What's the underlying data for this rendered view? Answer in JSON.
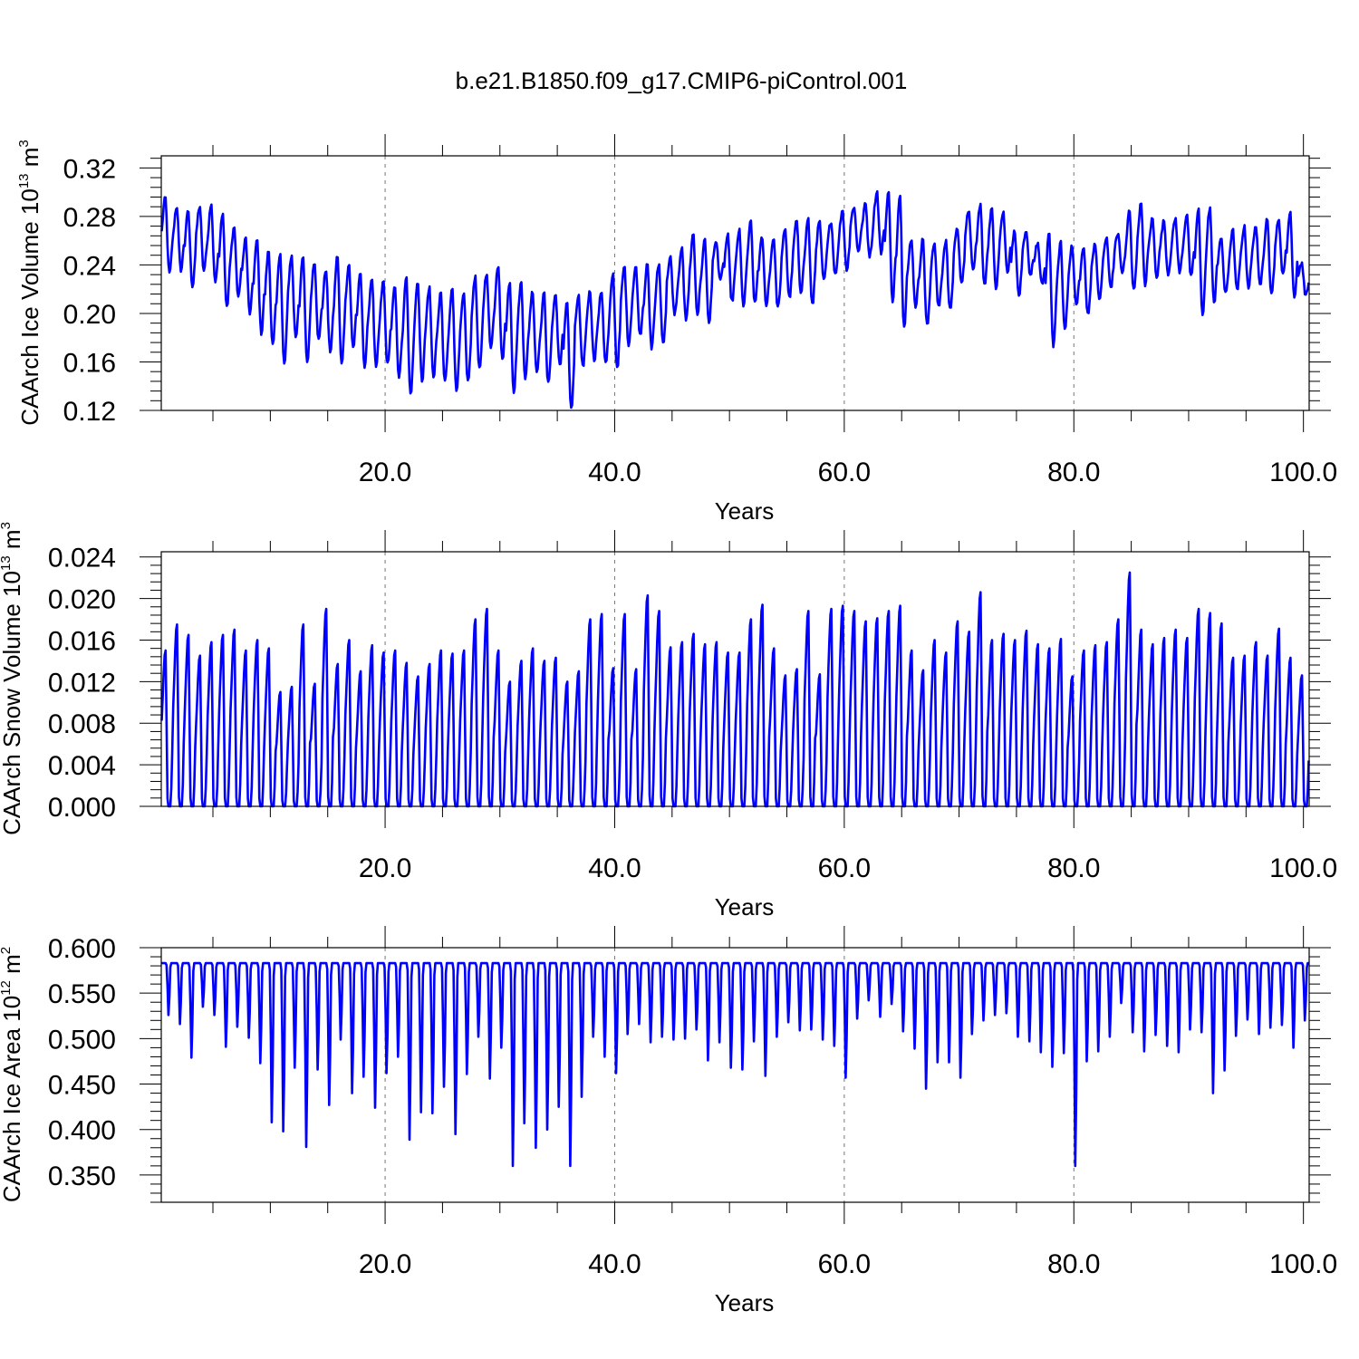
{
  "page": {
    "title": "b.e21.B1850.f09_g17.CMIP6-piControl.001"
  },
  "series_color": "#0000ff",
  "chart_data": [
    {
      "type": "line",
      "xlabel": "Years",
      "ylabel": "CAArch Ice Volume 10",
      "ylabel_exp": "13",
      "ylabel_unit": " m",
      "ylabel_unit_exp": "3",
      "xlim": [
        0.5,
        100.5
      ],
      "ylim": [
        0.12,
        0.33
      ],
      "x_ticks": [
        20,
        40,
        60,
        80,
        100
      ],
      "x_tick_labels": [
        "20.0",
        "40.0",
        "60.0",
        "80.0",
        "100.0"
      ],
      "y_ticks": [
        0.12,
        0.16,
        0.2,
        0.24,
        0.28,
        0.32
      ],
      "y_tick_labels": [
        "0.12",
        "0.16",
        "0.20",
        "0.24",
        "0.28",
        "0.32"
      ],
      "grid": "vertical dashed at major x ticks",
      "seasonal": {
        "years": 100,
        "annual_max": [
          0.295,
          0.288,
          0.284,
          0.288,
          0.289,
          0.283,
          0.271,
          0.262,
          0.26,
          0.251,
          0.25,
          0.247,
          0.246,
          0.242,
          0.236,
          0.247,
          0.24,
          0.232,
          0.229,
          0.226,
          0.221,
          0.229,
          0.226,
          0.221,
          0.216,
          0.22,
          0.218,
          0.23,
          0.232,
          0.24,
          0.226,
          0.225,
          0.218,
          0.216,
          0.215,
          0.21,
          0.214,
          0.218,
          0.218,
          0.232,
          0.238,
          0.238,
          0.24,
          0.24,
          0.246,
          0.253,
          0.264,
          0.261,
          0.258,
          0.264,
          0.268,
          0.275,
          0.262,
          0.262,
          0.27,
          0.276,
          0.278,
          0.275,
          0.276,
          0.285,
          0.288,
          0.29,
          0.3,
          0.3,
          0.296,
          0.262,
          0.262,
          0.258,
          0.26,
          0.27,
          0.285,
          0.29,
          0.286,
          0.283,
          0.268,
          0.266,
          0.258,
          0.266,
          0.258,
          0.255,
          0.254,
          0.258,
          0.262,
          0.266,
          0.285,
          0.29,
          0.278,
          0.276,
          0.278,
          0.282,
          0.285,
          0.287,
          0.262,
          0.268,
          0.271,
          0.272,
          0.278,
          0.276,
          0.283,
          0.242
        ],
        "annual_min": [
          0.233,
          0.236,
          0.223,
          0.235,
          0.226,
          0.205,
          0.214,
          0.2,
          0.184,
          0.174,
          0.158,
          0.181,
          0.16,
          0.178,
          0.169,
          0.158,
          0.172,
          0.157,
          0.155,
          0.158,
          0.148,
          0.133,
          0.145,
          0.148,
          0.144,
          0.137,
          0.143,
          0.154,
          0.171,
          0.162,
          0.136,
          0.147,
          0.152,
          0.142,
          0.158,
          0.121,
          0.156,
          0.162,
          0.159,
          0.156,
          0.175,
          0.183,
          0.172,
          0.176,
          0.2,
          0.195,
          0.2,
          0.193,
          0.228,
          0.21,
          0.207,
          0.208,
          0.207,
          0.205,
          0.213,
          0.218,
          0.207,
          0.227,
          0.233,
          0.237,
          0.252,
          0.248,
          0.25,
          0.211,
          0.189,
          0.205,
          0.19,
          0.205,
          0.203,
          0.227,
          0.235,
          0.223,
          0.222,
          0.235,
          0.215,
          0.232,
          0.224,
          0.174,
          0.187,
          0.207,
          0.2,
          0.212,
          0.222,
          0.234,
          0.219,
          0.224,
          0.231,
          0.233,
          0.234,
          0.23,
          0.2,
          0.209,
          0.216,
          0.219,
          0.222,
          0.224,
          0.215,
          0.233,
          0.213,
          0.215
        ]
      }
    },
    {
      "type": "line",
      "xlabel": "Years",
      "ylabel": "CAArch Snow Volume 10",
      "ylabel_exp": "13",
      "ylabel_unit": " m",
      "ylabel_unit_exp": "3",
      "xlim": [
        0.5,
        100.5
      ],
      "ylim": [
        0.0,
        0.0245
      ],
      "x_ticks": [
        20,
        40,
        60,
        80,
        100
      ],
      "x_tick_labels": [
        "20.0",
        "40.0",
        "60.0",
        "80.0",
        "100.0"
      ],
      "y_ticks": [
        0.0,
        0.004,
        0.008,
        0.012,
        0.016,
        0.02,
        0.024
      ],
      "y_tick_labels": [
        "0.000",
        "0.004",
        "0.008",
        "0.012",
        "0.016",
        "0.020",
        "0.024"
      ],
      "grid": "vertical dashed at major x ticks",
      "seasonal": {
        "years": 100,
        "annual_max": [
          0.015,
          0.0175,
          0.0165,
          0.0145,
          0.0158,
          0.0165,
          0.017,
          0.015,
          0.016,
          0.0152,
          0.011,
          0.0115,
          0.0175,
          0.0118,
          0.019,
          0.0137,
          0.016,
          0.013,
          0.0155,
          0.0148,
          0.015,
          0.0138,
          0.0125,
          0.0137,
          0.015,
          0.0147,
          0.015,
          0.018,
          0.019,
          0.015,
          0.012,
          0.014,
          0.0152,
          0.014,
          0.0143,
          0.012,
          0.013,
          0.018,
          0.0185,
          0.0133,
          0.0185,
          0.0132,
          0.0203,
          0.0188,
          0.0153,
          0.0158,
          0.0166,
          0.0156,
          0.0158,
          0.0148,
          0.0148,
          0.018,
          0.0194,
          0.0152,
          0.0126,
          0.0132,
          0.0188,
          0.0127,
          0.019,
          0.0193,
          0.0188,
          0.0178,
          0.0181,
          0.0188,
          0.0193,
          0.015,
          0.0131,
          0.016,
          0.0148,
          0.0178,
          0.0168,
          0.0206,
          0.016,
          0.0166,
          0.016,
          0.0169,
          0.0156,
          0.0152,
          0.0161,
          0.0125,
          0.015,
          0.0155,
          0.0158,
          0.018,
          0.0225,
          0.017,
          0.0156,
          0.0162,
          0.017,
          0.0162,
          0.019,
          0.0186,
          0.0176,
          0.0143,
          0.0145,
          0.0158,
          0.0145,
          0.0171,
          0.0143,
          0.0126
        ],
        "annual_min": 0.0
      }
    },
    {
      "type": "line",
      "xlabel": "Years",
      "ylabel": "CAArch Ice Area 10",
      "ylabel_exp": "12",
      "ylabel_unit": " m",
      "ylabel_unit_exp": "2",
      "xlim": [
        0.5,
        100.5
      ],
      "ylim": [
        0.32,
        0.6
      ],
      "x_ticks": [
        20,
        40,
        60,
        80,
        100
      ],
      "x_tick_labels": [
        "20.0",
        "40.0",
        "60.0",
        "80.0",
        "100.0"
      ],
      "y_ticks": [
        0.35,
        0.4,
        0.45,
        0.5,
        0.55,
        0.6
      ],
      "y_tick_labels": [
        "0.350",
        "0.400",
        "0.450",
        "0.500",
        "0.550",
        "0.600"
      ],
      "grid": "vertical dashed at major x ticks",
      "seasonal": {
        "years": 100,
        "annual_max": 0.583,
        "annual_min": [
          0.526,
          0.516,
          0.479,
          0.535,
          0.526,
          0.491,
          0.513,
          0.501,
          0.473,
          0.408,
          0.398,
          0.468,
          0.381,
          0.466,
          0.427,
          0.499,
          0.44,
          0.458,
          0.424,
          0.462,
          0.48,
          0.389,
          0.419,
          0.418,
          0.447,
          0.395,
          0.461,
          0.502,
          0.456,
          0.49,
          0.36,
          0.407,
          0.38,
          0.4,
          0.425,
          0.36,
          0.436,
          0.502,
          0.48,
          0.462,
          0.505,
          0.516,
          0.496,
          0.502,
          0.499,
          0.5,
          0.51,
          0.476,
          0.496,
          0.468,
          0.466,
          0.497,
          0.459,
          0.502,
          0.518,
          0.509,
          0.51,
          0.499,
          0.492,
          0.457,
          0.522,
          0.542,
          0.524,
          0.538,
          0.508,
          0.489,
          0.445,
          0.474,
          0.474,
          0.457,
          0.505,
          0.52,
          0.526,
          0.528,
          0.502,
          0.497,
          0.485,
          0.469,
          0.484,
          0.36,
          0.475,
          0.486,
          0.502,
          0.539,
          0.507,
          0.486,
          0.504,
          0.492,
          0.485,
          0.51,
          0.507,
          0.44,
          0.465,
          0.503,
          0.521,
          0.505,
          0.512,
          0.515,
          0.49,
          0.52
        ]
      }
    }
  ]
}
